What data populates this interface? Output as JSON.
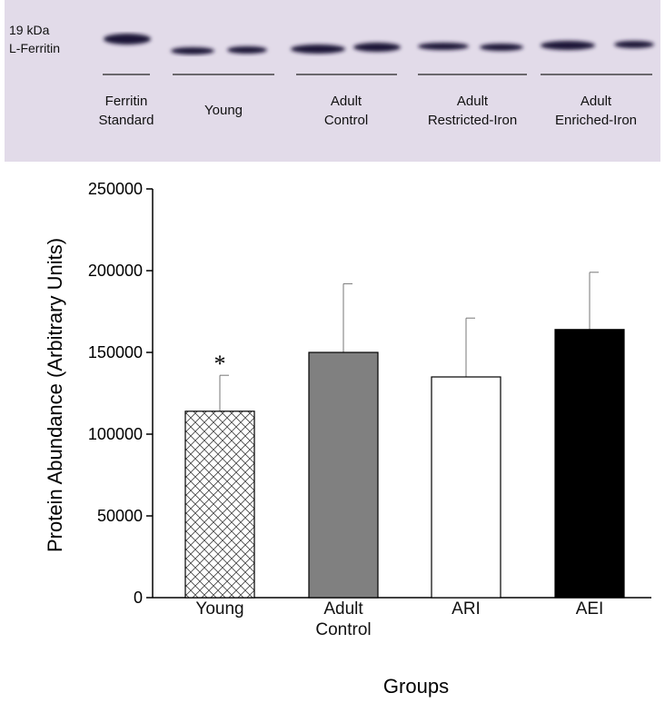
{
  "blot": {
    "marker": [
      "19 kDa",
      "L-Ferritin"
    ],
    "lanes": [
      [
        "Ferritin",
        "Standard"
      ],
      [
        "Young"
      ],
      [
        "Adult",
        "Control"
      ],
      [
        "Adult",
        "Restricted-Iron"
      ],
      [
        "Adult",
        "Enriched-Iron"
      ]
    ]
  },
  "chart_data": {
    "type": "bar",
    "x_label": "Groups",
    "y_label": "Protein Abundance (Arbitrary Units)",
    "categories": [
      "Young",
      "Adult Control",
      "ARI",
      "AEI"
    ],
    "values": [
      114000,
      150000,
      135000,
      164000
    ],
    "errors": [
      22000,
      42000,
      36000,
      35000
    ],
    "colors": [
      "#ffffff",
      "#808080",
      "#ffffff",
      "#000000"
    ],
    "patterns": [
      "crosshatch",
      null,
      null,
      null
    ],
    "annotations": [
      {
        "text": "*",
        "category": "Young"
      }
    ],
    "ylim": [
      0,
      250000
    ],
    "yticks": [
      0,
      50000,
      100000,
      150000,
      200000,
      250000
    ],
    "grid": false
  }
}
